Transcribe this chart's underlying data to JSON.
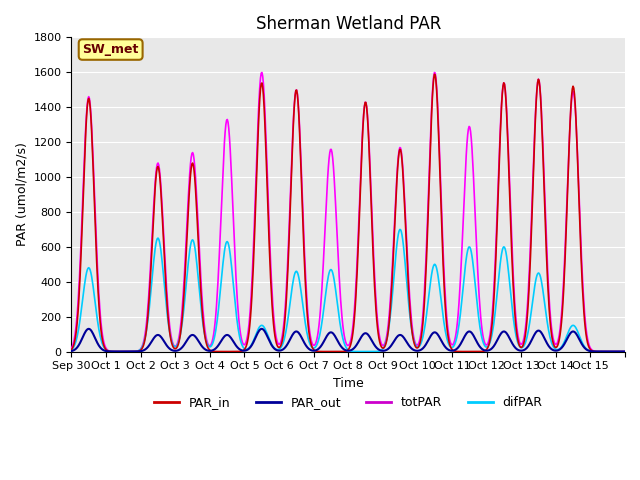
{
  "title": "Sherman Wetland PAR",
  "ylabel": "PAR (umol/m2/s)",
  "xlabel": "Time",
  "annotation": "SW_met",
  "bg_color": "#e8e8e8",
  "ylim": [
    0,
    1800
  ],
  "yticks": [
    0,
    200,
    400,
    600,
    800,
    1000,
    1200,
    1400,
    1600,
    1800
  ],
  "xtick_labels": [
    "Sep 30",
    "Oct 1",
    "Oct 2",
    "Oct 3",
    "Oct 4",
    "Oct 5",
    "Oct 6",
    "Oct 7",
    "Oct 8",
    "Oct 9",
    "Oct 10",
    "Oct 11",
    "Oct 12",
    "Oct 13",
    "Oct 14",
    "Oct 15",
    ""
  ],
  "colors": {
    "PAR_in": "#cc0000",
    "PAR_out": "#000099",
    "totPAR": "#ff00ff",
    "difPAR": "#00ccff"
  },
  "legend_colors": {
    "PAR_in": "#cc0000",
    "PAR_out": "#000099",
    "totPAR": "#cc00cc",
    "difPAR": "#00ccff"
  },
  "daily_peaks": {
    "PAR_in": [
      1450,
      0,
      1060,
      1080,
      0,
      1540,
      1500,
      0,
      1430,
      1160,
      1590,
      0,
      1540,
      1560,
      1520,
      0
    ],
    "totPAR": [
      1460,
      0,
      1080,
      1140,
      1330,
      1600,
      1500,
      1160,
      1430,
      1170,
      1600,
      1290,
      1540,
      1560,
      1490,
      0
    ],
    "difPAR": [
      480,
      0,
      650,
      640,
      630,
      150,
      460,
      470,
      0,
      700,
      500,
      600,
      600,
      450,
      150,
      0
    ],
    "PAR_out": [
      130,
      0,
      95,
      95,
      95,
      130,
      115,
      110,
      105,
      95,
      110,
      115,
      115,
      120,
      115,
      0
    ]
  },
  "n_days": 16,
  "pts_per_day": 48
}
